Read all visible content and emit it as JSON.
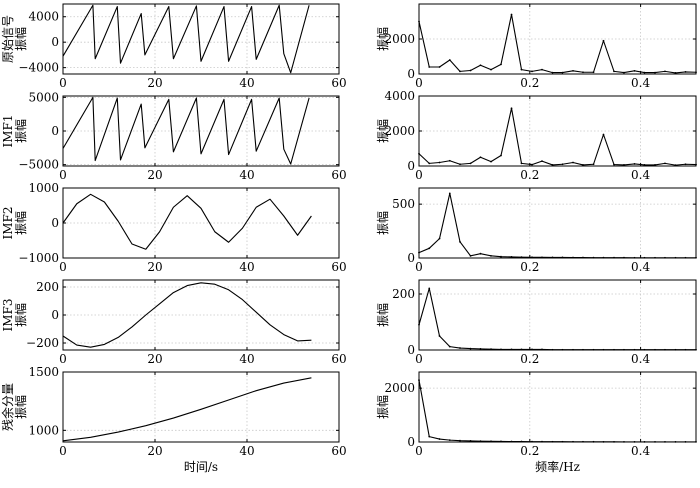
{
  "chart_data": [
    {
      "type": "line",
      "group": "time",
      "ylabel_lines": [
        "原始信号",
        "振幅"
      ],
      "xlim": [
        0,
        60
      ],
      "ylim": [
        -5000,
        6000
      ],
      "xticks": [
        0,
        20,
        40,
        60
      ],
      "yticks": [
        -4000,
        0,
        4000
      ],
      "ytick_labels": [
        "−4000",
        "0",
        "4000"
      ],
      "xlabel": "",
      "grid": true,
      "series": [
        {
          "x": [
            0,
            6.5,
            7,
            11.8,
            12.5,
            17,
            17.8,
            23,
            24,
            29,
            30,
            35,
            36,
            41,
            42,
            47,
            48,
            49.5,
            53.5
          ],
          "y": [
            -2200,
            5800,
            -2600,
            5600,
            -3300,
            4500,
            -2000,
            5600,
            -2600,
            5700,
            -3000,
            5600,
            -3000,
            5600,
            -2700,
            5800,
            -1800,
            -4800,
            5800
          ]
        }
      ]
    },
    {
      "type": "line",
      "group": "spectrum",
      "ylabel_lines": [
        "振幅"
      ],
      "xlim": [
        0,
        0.5
      ],
      "ylim": [
        0,
        4000
      ],
      "xticks": [
        0,
        0.2,
        0.4
      ],
      "yticks": [
        0,
        2000
      ],
      "ytick_labels": [
        "0",
        "2000"
      ],
      "xlabel": "",
      "grid": true,
      "series": [
        {
          "x": [
            0,
            0.0185,
            0.037,
            0.0556,
            0.074,
            0.093,
            0.111,
            0.13,
            0.148,
            0.167,
            0.185,
            0.204,
            0.222,
            0.241,
            0.259,
            0.278,
            0.296,
            0.315,
            0.333,
            0.352,
            0.37,
            0.389,
            0.407,
            0.426,
            0.444,
            0.463,
            0.481,
            0.5
          ],
          "y": [
            3000,
            400,
            400,
            800,
            150,
            200,
            500,
            250,
            550,
            3400,
            250,
            150,
            250,
            80,
            80,
            180,
            100,
            100,
            1900,
            150,
            80,
            180,
            80,
            80,
            150,
            60,
            120,
            100
          ]
        }
      ]
    },
    {
      "type": "line",
      "group": "time",
      "ylabel_lines": [
        "IMF1",
        "振幅"
      ],
      "xlim": [
        0,
        60
      ],
      "ylim": [
        -5200,
        5200
      ],
      "xticks": [
        0,
        20,
        40,
        60
      ],
      "yticks": [
        -5000,
        0,
        5000
      ],
      "ytick_labels": [
        "−5000",
        "0",
        "5000"
      ],
      "xlabel": "",
      "grid": true,
      "series": [
        {
          "x": [
            0,
            6.5,
            7,
            11.8,
            12.5,
            17,
            17.8,
            23,
            24,
            29,
            30,
            35,
            36,
            41,
            42,
            47,
            48,
            49.5,
            53.5
          ],
          "y": [
            -2600,
            5000,
            -4400,
            4900,
            -4300,
            4000,
            -2500,
            4700,
            -3100,
            4900,
            -3400,
            4700,
            -3500,
            4700,
            -3000,
            4900,
            -2700,
            -4900,
            4900
          ]
        }
      ]
    },
    {
      "type": "line",
      "group": "spectrum",
      "ylabel_lines": [
        "振幅"
      ],
      "xlim": [
        0,
        0.5
      ],
      "ylim": [
        0,
        4000
      ],
      "xticks": [
        0,
        0.2,
        0.4
      ],
      "yticks": [
        0,
        2000,
        4000
      ],
      "ytick_labels": [
        "0",
        "2000",
        "4000"
      ],
      "xlabel": "",
      "grid": true,
      "series": [
        {
          "x": [
            0,
            0.0185,
            0.037,
            0.0556,
            0.074,
            0.093,
            0.111,
            0.13,
            0.148,
            0.167,
            0.185,
            0.204,
            0.222,
            0.241,
            0.259,
            0.278,
            0.296,
            0.315,
            0.333,
            0.352,
            0.37,
            0.389,
            0.407,
            0.426,
            0.444,
            0.463,
            0.481,
            0.5
          ],
          "y": [
            700,
            150,
            200,
            300,
            100,
            150,
            500,
            250,
            600,
            3300,
            150,
            80,
            280,
            60,
            100,
            200,
            60,
            100,
            1800,
            80,
            60,
            120,
            60,
            60,
            150,
            50,
            100,
            80
          ]
        }
      ]
    },
    {
      "type": "line",
      "group": "time",
      "ylabel_lines": [
        "IMF2",
        "振幅"
      ],
      "xlim": [
        0,
        60
      ],
      "ylim": [
        -1000,
        1000
      ],
      "xticks": [
        0,
        20,
        40,
        60
      ],
      "yticks": [
        -1000,
        0,
        1000
      ],
      "ytick_labels": [
        "−1000",
        "0",
        "1000"
      ],
      "xlabel": "",
      "grid": true,
      "series": [
        {
          "x": [
            0,
            3,
            6,
            9,
            12,
            15,
            18,
            21,
            24,
            27,
            30,
            33,
            36,
            39,
            42,
            45,
            48,
            51,
            54
          ],
          "y": [
            0,
            550,
            820,
            600,
            50,
            -600,
            -750,
            -250,
            450,
            780,
            420,
            -250,
            -550,
            -150,
            450,
            680,
            200,
            -350,
            200
          ]
        }
      ]
    },
    {
      "type": "line",
      "group": "spectrum",
      "ylabel_lines": [
        "振幅"
      ],
      "xlim": [
        0,
        0.5
      ],
      "ylim": [
        0,
        650
      ],
      "xticks": [
        0,
        0.2,
        0.4
      ],
      "yticks": [
        0,
        500
      ],
      "ytick_labels": [
        "0",
        "500"
      ],
      "xlabel": "",
      "grid": true,
      "series": [
        {
          "x": [
            0,
            0.0185,
            0.037,
            0.0556,
            0.074,
            0.093,
            0.111,
            0.13,
            0.148,
            0.167,
            0.185,
            0.204,
            0.222,
            0.241,
            0.259,
            0.278,
            0.296,
            0.315,
            0.333,
            0.352,
            0.37,
            0.389,
            0.407,
            0.426,
            0.444,
            0.463,
            0.481,
            0.5
          ],
          "y": [
            50,
            90,
            180,
            600,
            150,
            20,
            40,
            20,
            12,
            10,
            8,
            7,
            6,
            5,
            5,
            4,
            4,
            3,
            3,
            3,
            3,
            2,
            2,
            2,
            2,
            2,
            2,
            2
          ]
        }
      ]
    },
    {
      "type": "line",
      "group": "time",
      "ylabel_lines": [
        "IMF3",
        "振幅"
      ],
      "xlim": [
        0,
        60
      ],
      "ylim": [
        -250,
        250
      ],
      "xticks": [
        0,
        20,
        40,
        60
      ],
      "yticks": [
        -200,
        0,
        200
      ],
      "ytick_labels": [
        "−200",
        "0",
        "200"
      ],
      "xlabel": "",
      "grid": true,
      "series": [
        {
          "x": [
            0,
            3,
            6,
            9,
            12,
            15,
            18,
            21,
            24,
            27,
            30,
            33,
            36,
            39,
            42,
            45,
            48,
            51,
            54
          ],
          "y": [
            -150,
            -215,
            -230,
            -210,
            -160,
            -85,
            0,
            80,
            160,
            210,
            230,
            220,
            180,
            110,
            20,
            -70,
            -140,
            -185,
            -180
          ]
        }
      ]
    },
    {
      "type": "line",
      "group": "spectrum",
      "ylabel_lines": [
        "振幅"
      ],
      "xlim": [
        0,
        0.5
      ],
      "ylim": [
        0,
        250
      ],
      "xticks": [
        0,
        0.2,
        0.4
      ],
      "yticks": [
        0,
        200
      ],
      "ytick_labels": [
        "0",
        "200"
      ],
      "xlabel": "",
      "grid": true,
      "series": [
        {
          "x": [
            0,
            0.0185,
            0.037,
            0.0556,
            0.074,
            0.093,
            0.111,
            0.13,
            0.148,
            0.167,
            0.185,
            0.204,
            0.222,
            0.241,
            0.259,
            0.278,
            0.296,
            0.315,
            0.333,
            0.352,
            0.37,
            0.389,
            0.407,
            0.426,
            0.444,
            0.463,
            0.481,
            0.5
          ],
          "y": [
            90,
            220,
            50,
            12,
            7,
            5,
            4,
            3,
            2,
            2,
            2,
            2,
            2,
            1,
            1,
            1,
            1,
            1,
            1,
            1,
            1,
            1,
            1,
            1,
            1,
            1,
            1,
            1
          ]
        }
      ]
    },
    {
      "type": "line",
      "group": "time",
      "ylabel_lines": [
        "残余分量",
        "振幅"
      ],
      "xlim": [
        0,
        60
      ],
      "ylim": [
        900,
        1500
      ],
      "xticks": [
        0,
        20,
        40,
        60
      ],
      "yticks": [
        1000,
        1500
      ],
      "ytick_labels": [
        "1000",
        "1500"
      ],
      "xlabel": "时间/s",
      "grid": true,
      "series": [
        {
          "x": [
            0,
            6,
            12,
            18,
            24,
            30,
            36,
            42,
            48,
            54
          ],
          "y": [
            910,
            940,
            985,
            1040,
            1105,
            1180,
            1260,
            1340,
            1405,
            1450
          ]
        }
      ]
    },
    {
      "type": "line",
      "group": "spectrum",
      "ylabel_lines": [
        "振幅"
      ],
      "xlim": [
        0,
        0.5
      ],
      "ylim": [
        0,
        2600
      ],
      "xticks": [
        0,
        0.2,
        0.4
      ],
      "yticks": [
        0,
        2000
      ],
      "ytick_labels": [
        "0",
        "2000"
      ],
      "xlabel": "频率/Hz",
      "grid": true,
      "series": [
        {
          "x": [
            0,
            0.0185,
            0.037,
            0.0556,
            0.074,
            0.093,
            0.111,
            0.13,
            0.148,
            0.167,
            0.185,
            0.204,
            0.222,
            0.241,
            0.259,
            0.278,
            0.296,
            0.315,
            0.333,
            0.352,
            0.37,
            0.389,
            0.407,
            0.426,
            0.444,
            0.463,
            0.481,
            0.5
          ],
          "y": [
            2300,
            200,
            110,
            70,
            50,
            40,
            30,
            25,
            20,
            18,
            16,
            14,
            12,
            10,
            10,
            9,
            8,
            7,
            6,
            6,
            5,
            5,
            5,
            4,
            4,
            4,
            4,
            4
          ]
        }
      ]
    }
  ]
}
